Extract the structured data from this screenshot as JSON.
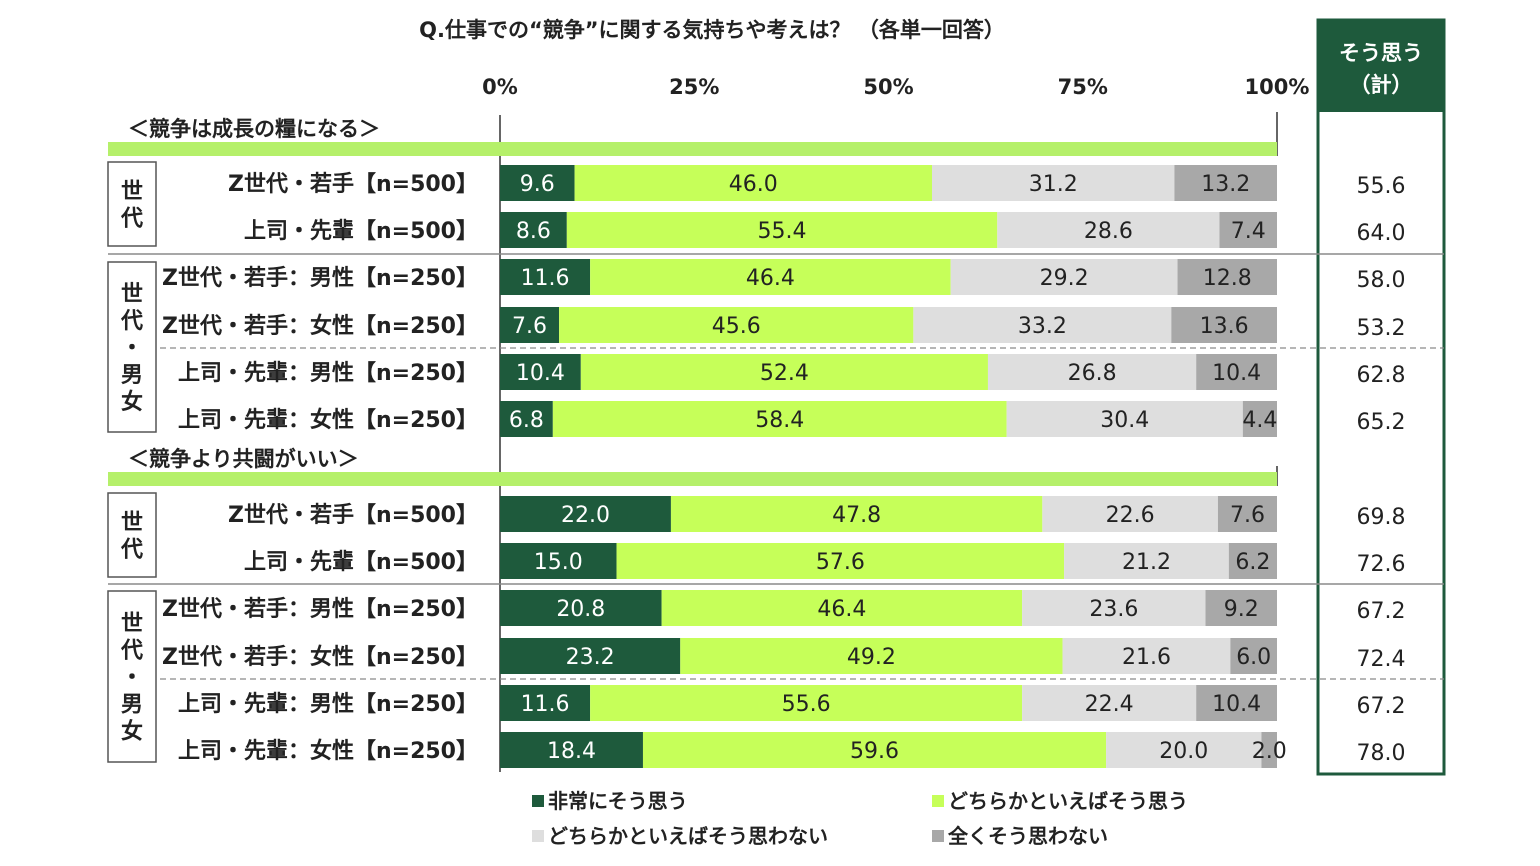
{
  "title": "Q.仕事での“競争”に関する気持ちや考えは？ （各単一回答）",
  "total_header": [
    "そう思う",
    "（計）"
  ],
  "axis_ticks": [
    "0%",
    "25%",
    "50%",
    "75%",
    "100%"
  ],
  "legend": [
    "非常にそう思う",
    "どちらかといえばそう思う",
    "どちらかといえばそう思わない",
    "全くそう思わない"
  ],
  "colors": [
    "#1e5a3c",
    "#c6ff59",
    "#dedede",
    "#a8a8a8"
  ],
  "chart_data": {
    "type": "bar",
    "orientation": "horizontal",
    "stacked": "100%",
    "xlim": [
      0,
      100
    ],
    "series_names": [
      "非常にそう思う",
      "どちらかといえばそう思う",
      "どちらかといえばそう思わない",
      "全くそう思わない"
    ],
    "sections": [
      {
        "title": "＜競争は成長の糧になる＞",
        "groups": [
          {
            "label": "世代",
            "rows": [
              {
                "label": "Z世代・若手【n=500】",
                "values": [
                  9.6,
                  46.0,
                  31.2,
                  13.2
                ],
                "total": 55.6
              },
              {
                "label": "上司・先輩【n=500】",
                "values": [
                  8.6,
                  55.4,
                  28.6,
                  7.4
                ],
                "total": 64.0
              }
            ]
          },
          {
            "label": "世代・男女",
            "rows": [
              {
                "label": "Z世代・若手：男性【n=250】",
                "values": [
                  11.6,
                  46.4,
                  29.2,
                  12.8
                ],
                "total": 58.0
              },
              {
                "label": "Z世代・若手：女性【n=250】",
                "values": [
                  7.6,
                  45.6,
                  33.2,
                  13.6
                ],
                "total": 53.2
              },
              {
                "label": "上司・先輩：男性【n=250】",
                "values": [
                  10.4,
                  52.4,
                  26.8,
                  10.4
                ],
                "total": 62.8
              },
              {
                "label": "上司・先輩：女性【n=250】",
                "values": [
                  6.8,
                  58.4,
                  30.4,
                  4.4
                ],
                "total": 65.2
              }
            ]
          }
        ]
      },
      {
        "title": "＜競争より共闘がいい＞",
        "groups": [
          {
            "label": "世代",
            "rows": [
              {
                "label": "Z世代・若手【n=500】",
                "values": [
                  22.0,
                  47.8,
                  22.6,
                  7.6
                ],
                "total": 69.8
              },
              {
                "label": "上司・先輩【n=500】",
                "values": [
                  15.0,
                  57.6,
                  21.2,
                  6.2
                ],
                "total": 72.6
              }
            ]
          },
          {
            "label": "世代・男女",
            "rows": [
              {
                "label": "Z世代・若手：男性【n=250】",
                "values": [
                  20.8,
                  46.4,
                  23.6,
                  9.2
                ],
                "total": 67.2
              },
              {
                "label": "Z世代・若手：女性【n=250】",
                "values": [
                  23.2,
                  49.2,
                  21.6,
                  6.0
                ],
                "total": 72.4
              },
              {
                "label": "上司・先輩：男性【n=250】",
                "values": [
                  11.6,
                  55.6,
                  22.4,
                  10.4
                ],
                "total": 67.2
              },
              {
                "label": "上司・先輩：女性【n=250】",
                "values": [
                  18.4,
                  59.6,
                  20.0,
                  2.0
                ],
                "total": 78.0
              }
            ]
          }
        ]
      }
    ]
  }
}
